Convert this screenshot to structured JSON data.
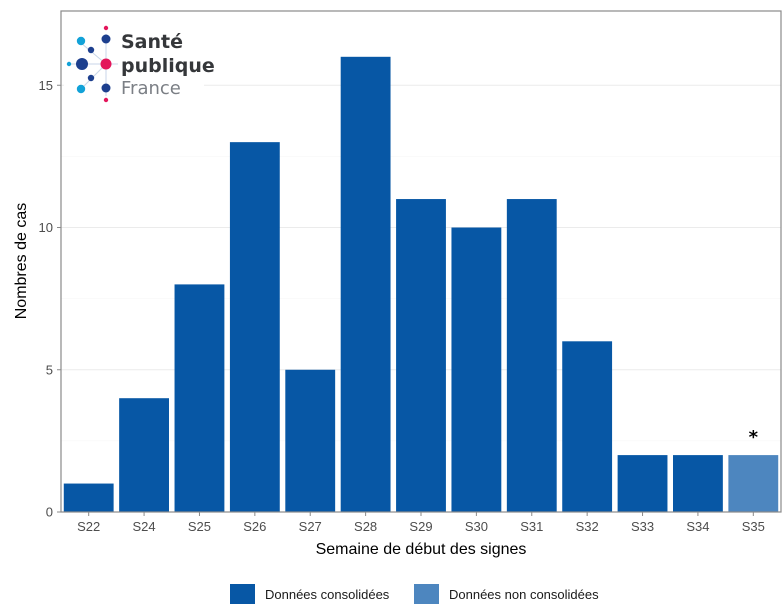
{
  "logo": {
    "line1": "Santé",
    "line2": "publique",
    "line3": "France"
  },
  "chart_data": {
    "type": "bar",
    "categories": [
      "S22",
      "S24",
      "S25",
      "S26",
      "S27",
      "S28",
      "S29",
      "S30",
      "S31",
      "S32",
      "S33",
      "S34",
      "S35"
    ],
    "values": [
      1,
      4,
      8,
      13,
      5,
      16,
      11,
      10,
      11,
      6,
      2,
      2,
      2
    ],
    "status": [
      "consolidated",
      "consolidated",
      "consolidated",
      "consolidated",
      "consolidated",
      "consolidated",
      "consolidated",
      "consolidated",
      "consolidated",
      "consolidated",
      "consolidated",
      "consolidated",
      "non-consolidated"
    ],
    "title": "",
    "xlabel": "Semaine de début des signes",
    "ylabel": "Nombres de cas",
    "ylim": [
      0,
      17.5
    ],
    "yticks": [
      0,
      5,
      10,
      15
    ],
    "grid": true,
    "annotation": {
      "category": "S35",
      "text": "*"
    },
    "legend": {
      "position": "bottom",
      "items": [
        {
          "label": "Données consolidées",
          "color": "#0757a5"
        },
        {
          "label": "Données non consolidées",
          "color": "#4d86bf"
        }
      ]
    },
    "colors": {
      "consolidated": "#0757a5",
      "non-consolidated": "#4d86bf"
    }
  }
}
